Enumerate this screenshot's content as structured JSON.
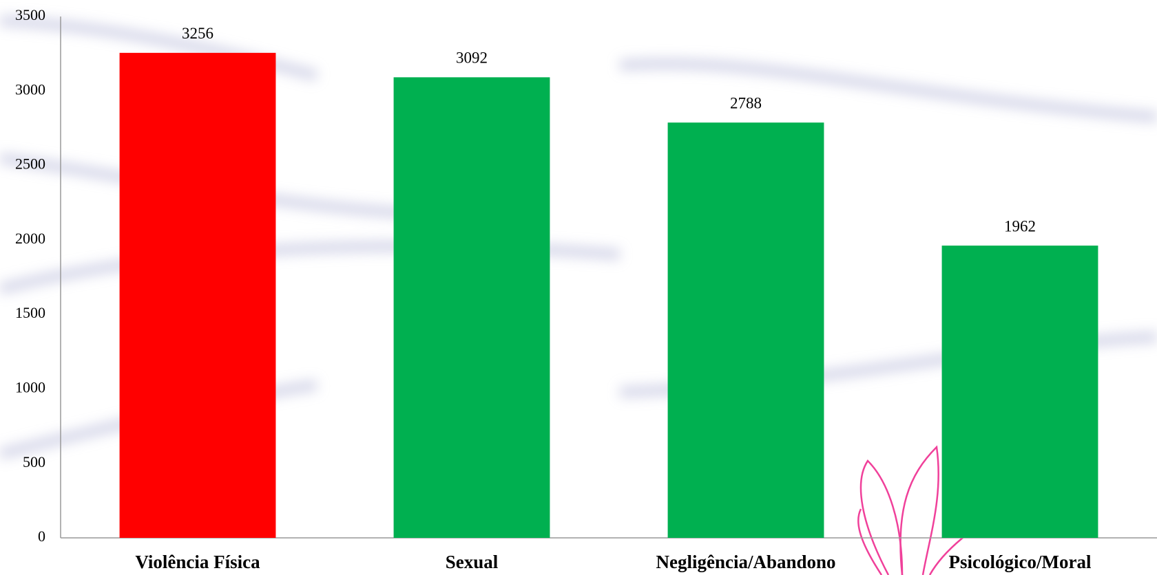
{
  "chart_data": {
    "type": "bar",
    "categories": [
      "Violência Física",
      "Sexual",
      "Negligência/Abandono",
      "Psicológico/Moral"
    ],
    "values": [
      3256,
      3092,
      2788,
      1962
    ],
    "colors": [
      "#ff0000",
      "#00b050",
      "#00b050",
      "#00b050"
    ],
    "ylim": [
      0,
      3500
    ],
    "yticks": [
      0,
      500,
      1000,
      1500,
      2000,
      2500,
      3000,
      3500
    ],
    "grid": false
  }
}
